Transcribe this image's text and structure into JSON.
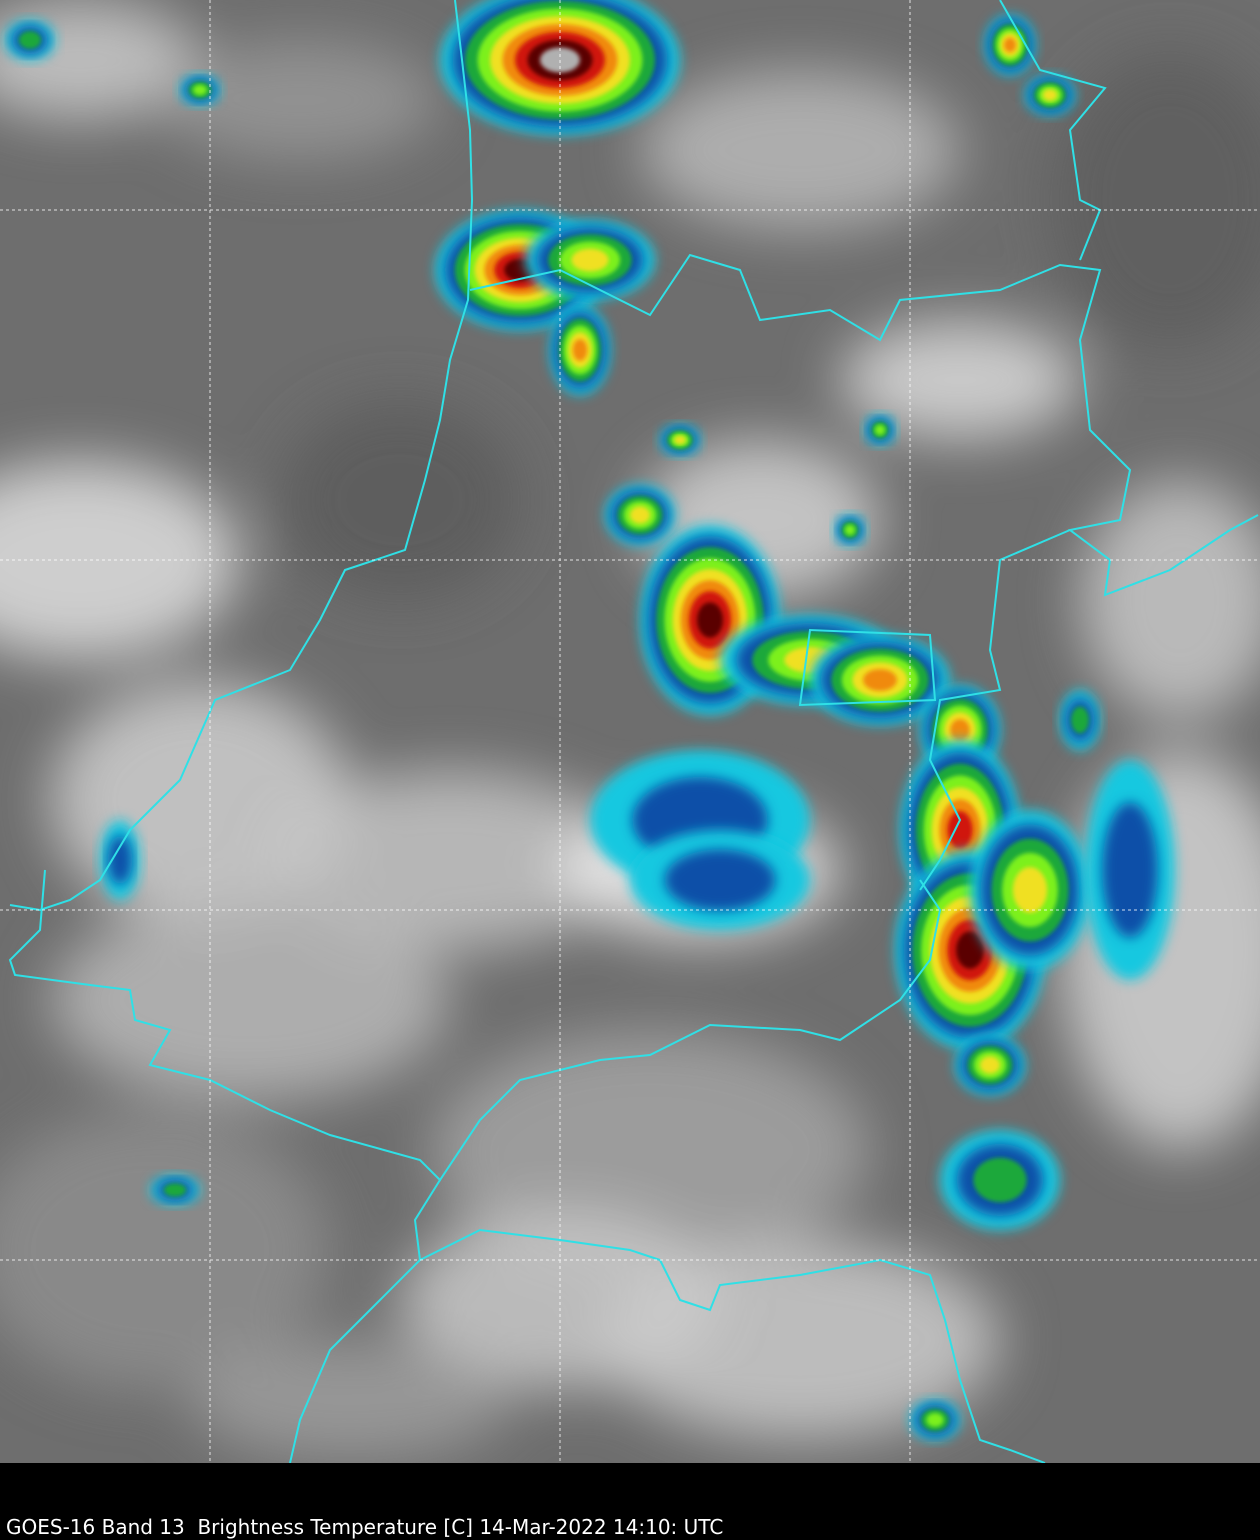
{
  "caption": "GOES-16 Band 13  Brightness Temperature [C] 14-Mar-2022 14:10: UTC"
}
